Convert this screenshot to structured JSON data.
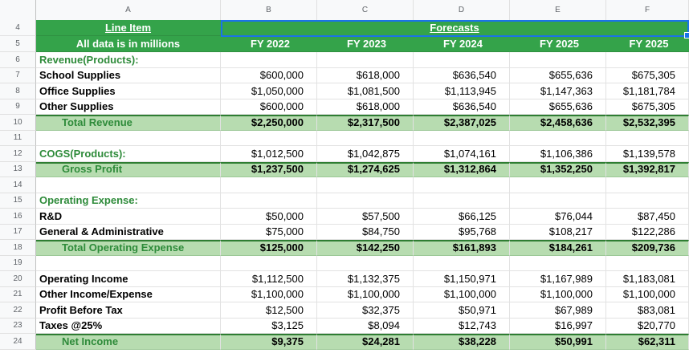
{
  "columns": [
    "A",
    "B",
    "C",
    "D",
    "E",
    "F"
  ],
  "header_rows": [
    {
      "row": "4",
      "a": "Line Item",
      "b": "Forecasts"
    },
    {
      "row": "5",
      "a": "All data is in millions",
      "years": [
        "FY 2022",
        "FY 2023",
        "FY 2024",
        "FY 2025",
        "FY 2025"
      ]
    }
  ],
  "rows": [
    {
      "row": "6",
      "label": "Revenue(Products):",
      "style": "section",
      "values": [
        "",
        "",
        "",
        "",
        ""
      ]
    },
    {
      "row": "7",
      "label": "School Supplies",
      "style": "bold",
      "values": [
        "$600,000",
        "$618,000",
        "$636,540",
        "$655,636",
        "$675,305"
      ]
    },
    {
      "row": "8",
      "label": "Office Supplies",
      "style": "bold",
      "values": [
        "$1,050,000",
        "$1,081,500",
        "$1,113,945",
        "$1,147,363",
        "$1,181,784"
      ]
    },
    {
      "row": "9",
      "label": "Other Supplies",
      "style": "bold",
      "values": [
        "$600,000",
        "$618,000",
        "$636,540",
        "$655,636",
        "$675,305"
      ]
    },
    {
      "row": "10",
      "label": "Total Revenue",
      "style": "total",
      "values": [
        "$2,250,000",
        "$2,317,500",
        "$2,387,025",
        "$2,458,636",
        "$2,532,395"
      ]
    },
    {
      "row": "11",
      "label": "",
      "style": "blank",
      "values": [
        "",
        "",
        "",
        "",
        ""
      ]
    },
    {
      "row": "12",
      "label": "COGS(Products):",
      "style": "section",
      "values": [
        "$1,012,500",
        "$1,042,875",
        "$1,074,161",
        "$1,106,386",
        "$1,139,578"
      ]
    },
    {
      "row": "13",
      "label": "Gross Profit",
      "style": "total",
      "values": [
        "$1,237,500",
        "$1,274,625",
        "$1,312,864",
        "$1,352,250",
        "$1,392,817"
      ]
    },
    {
      "row": "14",
      "label": "",
      "style": "blank",
      "values": [
        "",
        "",
        "",
        "",
        ""
      ]
    },
    {
      "row": "15",
      "label": "Operating Expense:",
      "style": "section",
      "values": [
        "",
        "",
        "",
        "",
        ""
      ]
    },
    {
      "row": "16",
      "label": "R&D",
      "style": "bold",
      "values": [
        "$50,000",
        "$57,500",
        "$66,125",
        "$76,044",
        "$87,450"
      ]
    },
    {
      "row": "17",
      "label": "General & Administrative",
      "style": "bold",
      "values": [
        "$75,000",
        "$84,750",
        "$95,768",
        "$108,217",
        "$122,286"
      ]
    },
    {
      "row": "18",
      "label": "Total Operating Expense",
      "style": "total",
      "values": [
        "$125,000",
        "$142,250",
        "$161,893",
        "$184,261",
        "$209,736"
      ]
    },
    {
      "row": "19",
      "label": "",
      "style": "blank",
      "values": [
        "",
        "",
        "",
        "",
        ""
      ]
    },
    {
      "row": "20",
      "label": "Operating Income",
      "style": "bold",
      "values": [
        "$1,112,500",
        "$1,132,375",
        "$1,150,971",
        "$1,167,989",
        "$1,183,081"
      ]
    },
    {
      "row": "21",
      "label": "Other Income/Expense",
      "style": "bold",
      "values": [
        "$1,100,000",
        "$1,100,000",
        "$1,100,000",
        "$1,100,000",
        "$1,100,000"
      ]
    },
    {
      "row": "22",
      "label": "Profit Before Tax",
      "style": "bold",
      "values": [
        "$12,500",
        "$32,375",
        "$50,971",
        "$67,989",
        "$83,081"
      ]
    },
    {
      "row": "23",
      "label": "Taxes @25%",
      "style": "bold",
      "values": [
        "$3,125",
        "$8,094",
        "$12,743",
        "$16,997",
        "$20,770"
      ]
    },
    {
      "row": "24",
      "label": "Net Income",
      "style": "total",
      "values": [
        "$9,375",
        "$24,281",
        "$38,228",
        "$50,991",
        "$62,311"
      ]
    }
  ]
}
